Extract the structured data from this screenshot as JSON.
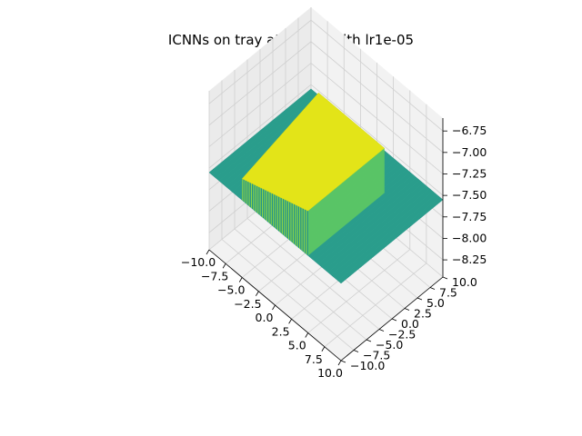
{
  "chart_data": {
    "type": "surface",
    "title": "ICNNs on tray at t = 50 with lr1e-05",
    "xlabel": "",
    "ylabel": "",
    "zlabel": "",
    "xlim": [
      -10.0,
      10.0
    ],
    "ylim": [
      -10.0,
      10.0
    ],
    "zlim": [
      -8.45,
      -6.6
    ],
    "x_ticks": [
      "−10.0",
      "−7.5",
      "−5.0",
      "−2.5",
      "0.0",
      "2.5",
      "5.0",
      "7.5",
      "10.0"
    ],
    "y_ticks": [
      "−10.0",
      "−7.5",
      "−5.0",
      "−2.5",
      "0.0",
      "2.5",
      "5.0",
      "7.5",
      "10.0"
    ],
    "z_ticks": [
      "−8.25",
      "−8.00",
      "−7.75",
      "−7.50",
      "−7.25",
      "−7.00",
      "−6.75"
    ],
    "grid": true,
    "colormap": "viridis",
    "surface": {
      "base_level": -7.55,
      "raised_level_min": -7.3,
      "raised_level_max": -7.03,
      "raised_region": {
        "x": [
          -5.0,
          5.0
        ],
        "y": [
          -10.0,
          5.0
        ]
      },
      "description_value_notes": "flat tray at base level; raised sloped plateau inside region"
    }
  },
  "colors": {
    "pane_left": "#ebebeb",
    "pane_back": "#f2f2f2",
    "pane_floor": "#f2f2f2",
    "grid": "#cfcfcf",
    "base_surface": "#2a9d8c",
    "raised_surface": "#e3e418",
    "wall_dark": "#21918c",
    "wall_light": "#8fd744"
  }
}
